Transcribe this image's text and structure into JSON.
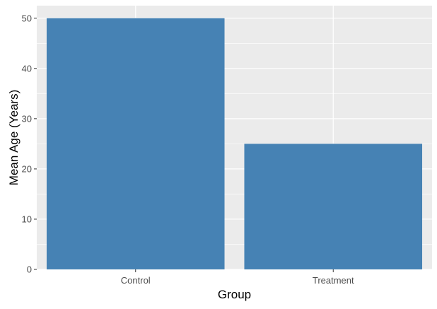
{
  "colors": {
    "panel_bg": "#ebebeb",
    "grid_major": "#ffffff",
    "bar_fill": "#4682b4",
    "tick_text": "#4d4d4d",
    "tick_mark": "#333333"
  },
  "chart_data": {
    "type": "bar",
    "categories": [
      "Control",
      "Treatment"
    ],
    "values": [
      50,
      25
    ],
    "title": "",
    "xlabel": "Group",
    "ylabel": "Mean Age (Years)",
    "ylim": [
      0,
      52.5
    ],
    "yticks": [
      0,
      10,
      20,
      30,
      40,
      50
    ],
    "grid": true,
    "legend": "none"
  }
}
